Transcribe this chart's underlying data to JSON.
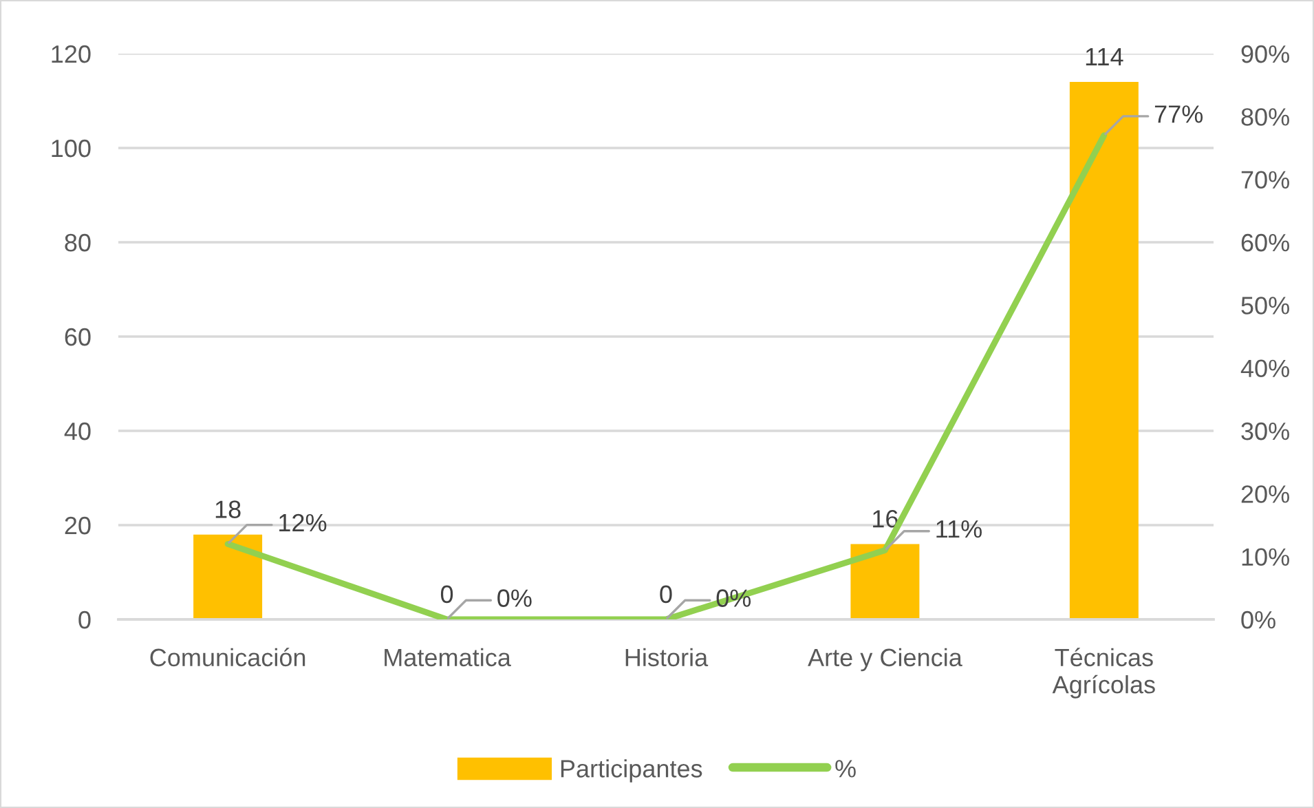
{
  "chart_data": {
    "type": "bar",
    "categories": [
      "Comunicación",
      "Matematica",
      "Historia",
      "Arte y Ciencia",
      "Técnicas\nAgrícolas"
    ],
    "series": [
      {
        "name": "Participantes",
        "color": "#ffc000",
        "values": [
          18,
          0,
          0,
          16,
          114
        ],
        "value_labels": [
          "18",
          "0",
          "0",
          "16",
          "114"
        ]
      },
      {
        "name": "%",
        "type": "line",
        "axis": "y2",
        "color": "#92d050",
        "values": [
          12,
          0,
          0,
          11,
          77
        ],
        "value_labels": [
          "12%",
          "0%",
          "0%",
          "11%",
          "77%"
        ]
      }
    ],
    "ylim": [
      0,
      120
    ],
    "yticks": [
      0,
      20,
      40,
      60,
      80,
      100,
      120
    ],
    "y2lim": [
      0,
      90
    ],
    "y2ticks": [
      {
        "value": 0,
        "label": "0%"
      },
      {
        "value": 10,
        "label": "10%"
      },
      {
        "value": 20,
        "label": "20%"
      },
      {
        "value": 30,
        "label": "30%"
      },
      {
        "value": 40,
        "label": "40%"
      },
      {
        "value": 50,
        "label": "50%"
      },
      {
        "value": 60,
        "label": "60%"
      },
      {
        "value": 70,
        "label": "70%"
      },
      {
        "value": 80,
        "label": "80%"
      },
      {
        "value": 90,
        "label": "90%"
      }
    ],
    "grid": "y",
    "legend": "bottom"
  }
}
